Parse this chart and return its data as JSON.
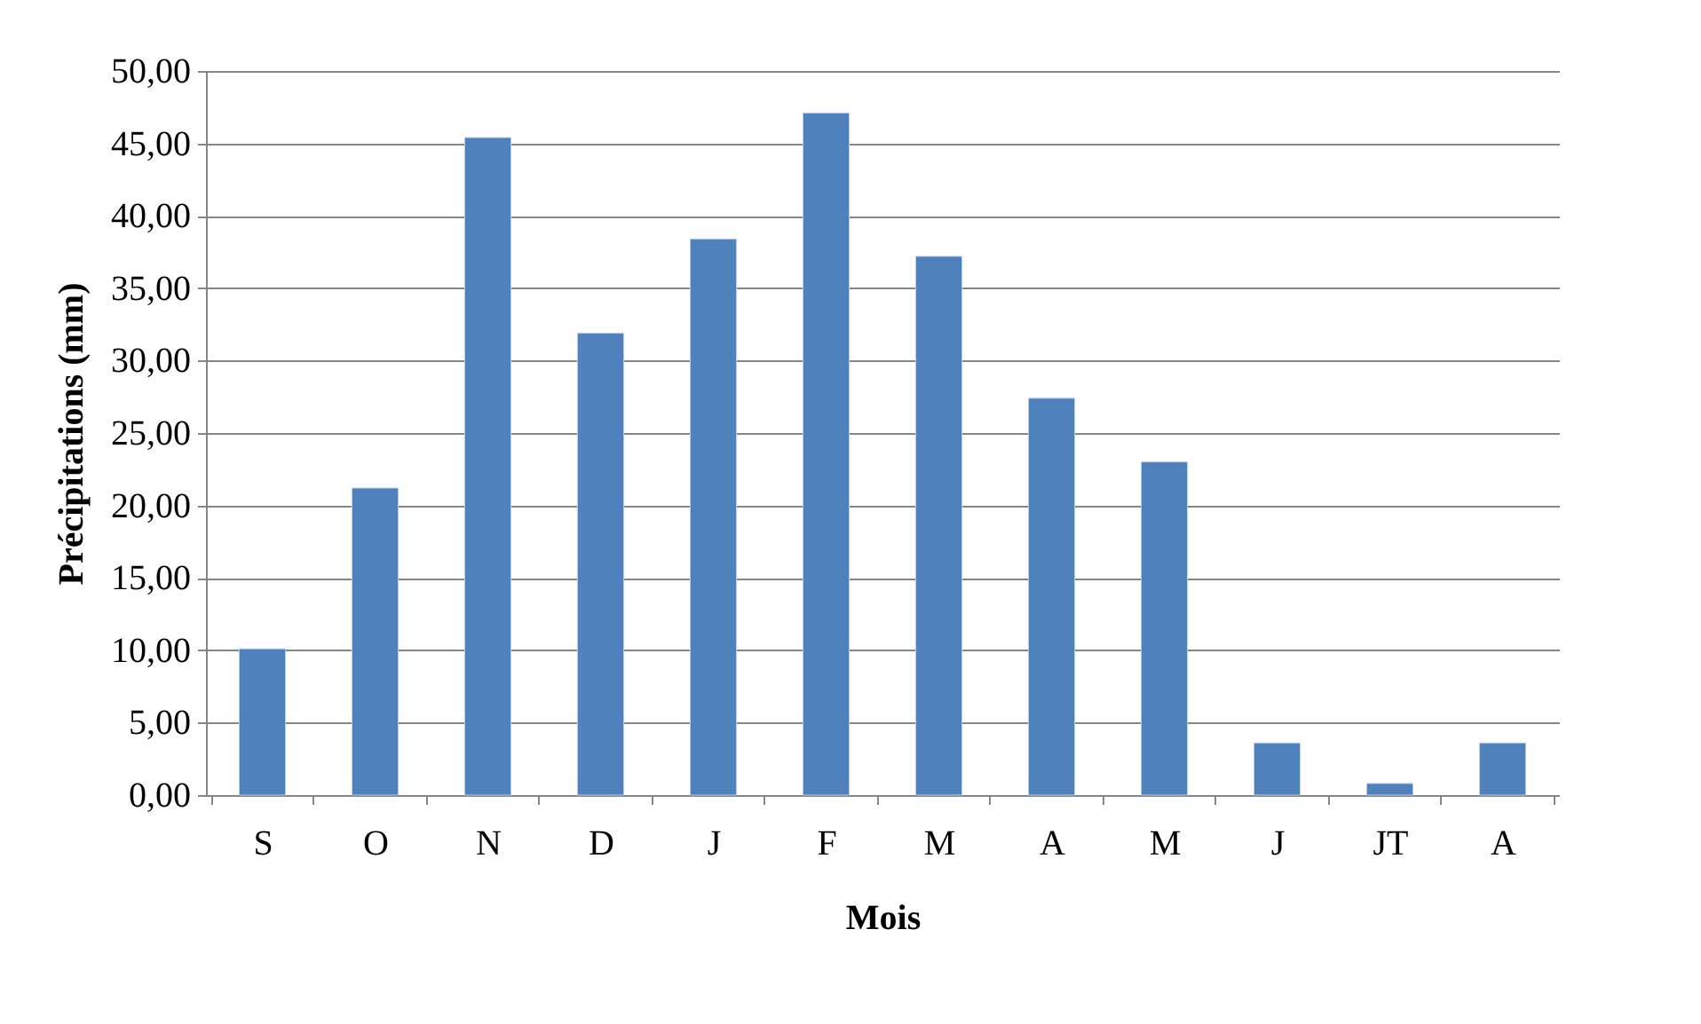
{
  "chart_data": {
    "type": "bar",
    "xlabel": "Mois",
    "ylabel": "Précipitations (mm)",
    "categories": [
      "S",
      "O",
      "N",
      "D",
      "J",
      "F",
      "M",
      "A",
      "M",
      "J",
      "JT",
      "A"
    ],
    "values": [
      10.1,
      21.2,
      45.4,
      31.9,
      38.4,
      47.1,
      37.2,
      27.4,
      23.0,
      3.6,
      0.8,
      3.6
    ],
    "color": "#4f81bd",
    "ylim": [
      0,
      50
    ],
    "yticks": [
      {
        "value": 0,
        "label": "0,00"
      },
      {
        "value": 5,
        "label": "5,00"
      },
      {
        "value": 10,
        "label": "10,00"
      },
      {
        "value": 15,
        "label": "15,00"
      },
      {
        "value": 20,
        "label": "20,00"
      },
      {
        "value": 25,
        "label": "25,00"
      },
      {
        "value": 30,
        "label": "30,00"
      },
      {
        "value": 35,
        "label": "35,00"
      },
      {
        "value": 40,
        "label": "40,00"
      },
      {
        "value": 45,
        "label": "45,00"
      },
      {
        "value": 50,
        "label": "50,00"
      }
    ],
    "grid": "y"
  }
}
